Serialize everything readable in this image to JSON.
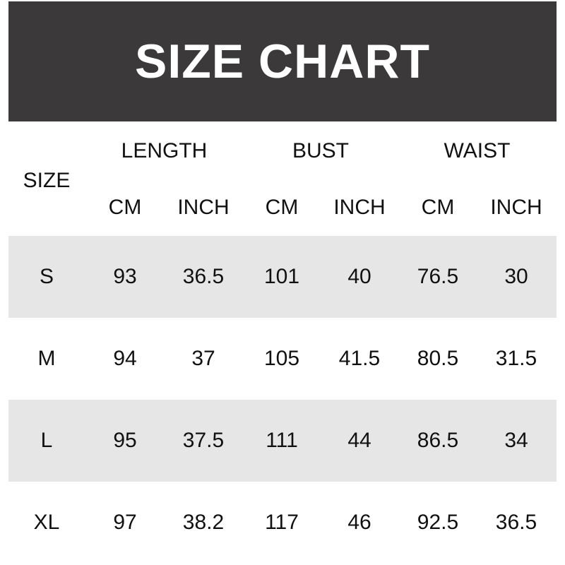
{
  "title": "SIZE CHART",
  "header": {
    "size": "SIZE",
    "groups": [
      "LENGTH",
      "BUST",
      "WAIST"
    ],
    "units": [
      "CM",
      "INCH",
      "CM",
      "INCH",
      "CM",
      "INCH"
    ]
  },
  "rows": [
    {
      "size": "S",
      "values": [
        "93",
        "36.5",
        "101",
        "40",
        "76.5",
        "30"
      ]
    },
    {
      "size": "M",
      "values": [
        "94",
        "37",
        "105",
        "41.5",
        "80.5",
        "31.5"
      ]
    },
    {
      "size": "L",
      "values": [
        "95",
        "37.5",
        "111",
        "44",
        "86.5",
        "34"
      ]
    },
    {
      "size": "XL",
      "values": [
        "97",
        "38.2",
        "117",
        "46",
        "92.5",
        "36.5"
      ]
    }
  ],
  "colors": {
    "header_bg": "#3b3939",
    "stripe": "#e6e6e6"
  }
}
